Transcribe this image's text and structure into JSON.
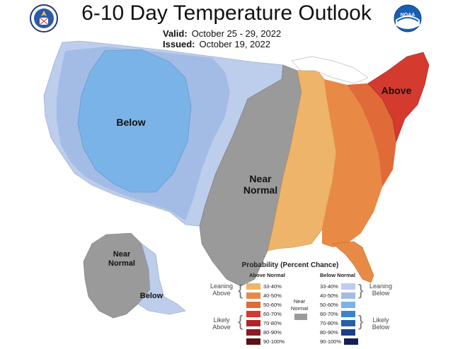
{
  "title": "6-10 Day Temperature Outlook",
  "valid": {
    "label": "Valid:",
    "value": "October 25 - 29, 2022"
  },
  "issued": {
    "label": "Issued:",
    "value": "October 19, 2022"
  },
  "logos": {
    "left": "doc-seal-logo",
    "right": "noaa-logo",
    "right_text": "NOAA"
  },
  "regions": {
    "below_west": "Below",
    "near_normal_line1": "Near",
    "near_normal_line2": "Normal",
    "above_northeast": "Above",
    "alaska_near_line1": "Near",
    "alaska_near_line2": "Normal",
    "alaska_below": "Below"
  },
  "colors": {
    "below_33_40": "#bdcdec",
    "below_40_50": "#a3bce6",
    "below_50_60": "#7ab3e8",
    "near_normal": "#9a9a9a",
    "above_33_40": "#edb46a",
    "above_40_50": "#e88a45",
    "above_50_60": "#e06a38",
    "above_60_70": "#d43a2e",
    "above_70_80": "#b02228",
    "above_80_90": "#8a1a24",
    "above_90_100": "#5c1014",
    "below_60_70": "#3a84cc",
    "below_70_80": "#2860a8",
    "below_80_90": "#1c3e88",
    "below_90_100": "#14205a"
  },
  "legend": {
    "title": "Probability (Percent Chance)",
    "above_header": "Above Normal",
    "below_header": "Below Normal",
    "above_items": [
      "33-40%",
      "40-50%",
      "50-60%",
      "60-70%",
      "70-80%",
      "80-90%",
      "90-100%"
    ],
    "below_items": [
      "33-40%",
      "40-50%",
      "50-60%",
      "60-70%",
      "70-80%",
      "80-90%",
      "90-100%"
    ],
    "near_normal_line1": "Near",
    "near_normal_line2": "Normal",
    "leaning_above_1": "Leaning",
    "leaning_above_2": "Above",
    "likely_above_1": "Likely",
    "likely_above_2": "Above",
    "leaning_below_1": "Leaning",
    "leaning_below_2": "Below",
    "likely_below_1": "Likely",
    "likely_below_2": "Below"
  }
}
